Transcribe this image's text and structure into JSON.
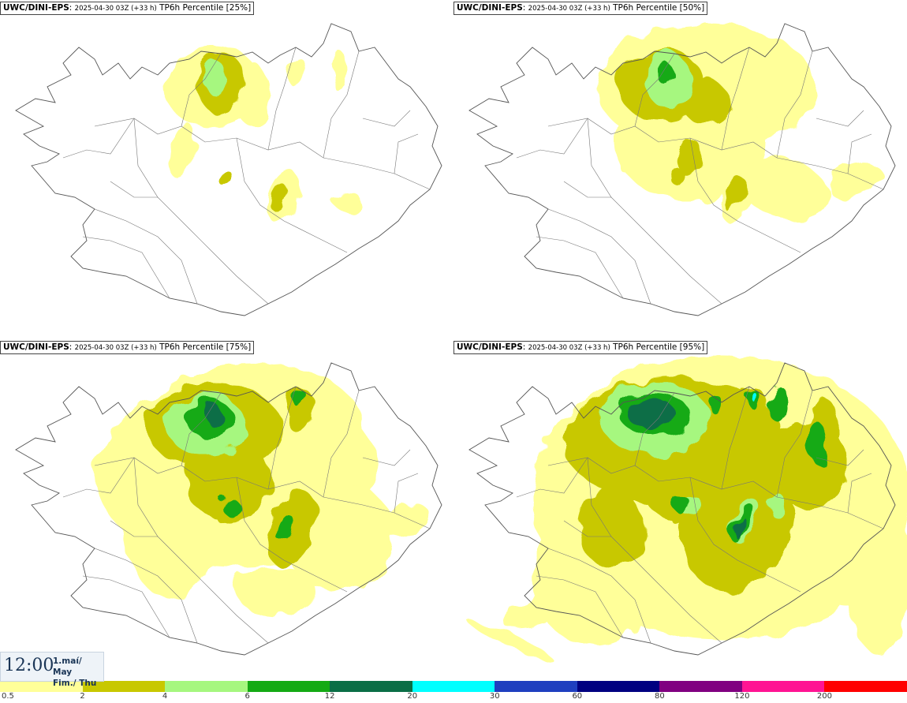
{
  "panels": [
    {
      "model": "UWC/DINI-EPS",
      "run": "2025-04-30 03Z (+33 h)",
      "field": "TP6h Percentile [25%]",
      "level": 1
    },
    {
      "model": "UWC/DINI-EPS",
      "run": "2025-04-30 03Z (+33 h)",
      "field": "TP6h Percentile [50%]",
      "level": 2
    },
    {
      "model": "UWC/DINI-EPS",
      "run": "2025-04-30 03Z (+33 h)",
      "field": "TP6h Percentile [75%]",
      "level": 3
    },
    {
      "model": "UWC/DINI-EPS",
      "run": "2025-04-30 03Z (+33 h)",
      "field": "TP6h Percentile [95%]",
      "level": 4
    }
  ],
  "valid_time": {
    "time": "12:00",
    "date_line1": "1.maí/ May",
    "date_line2": "Fim./ Thu"
  },
  "legend": {
    "colors": [
      "#ffff99",
      "#c8c800",
      "#a6f77f",
      "#14aa14",
      "#0a6e46",
      "#00ffff",
      "#1f3fbf",
      "#000080",
      "#800080",
      "#ff1493",
      "#ff0000"
    ],
    "ticks": [
      "0.5",
      "2",
      "4",
      "6",
      "12",
      "20",
      "30",
      "60",
      "80",
      "120",
      "200"
    ]
  }
}
